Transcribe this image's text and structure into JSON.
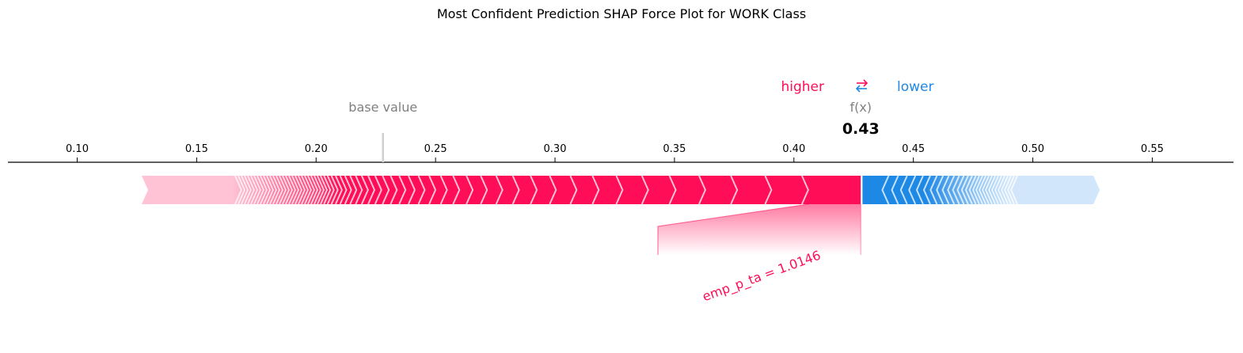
{
  "colors": {
    "positive": "#ff0d57",
    "positive_light": "#ffc3d5",
    "negative": "#1e88e5",
    "negative_light": "#d1e6fa",
    "grey": "#808080"
  },
  "legend": {
    "higher_label": "higher",
    "lower_label": "lower",
    "arrow_icon": "swap-arrows-icon"
  },
  "chart_data": {
    "type": "force",
    "title": "Most Confident Prediction SHAP Force Plot for WORK Class",
    "xlim": [
      0.071,
      0.584
    ],
    "ticks": [
      0.1,
      0.15,
      0.2,
      0.25,
      0.3,
      0.35,
      0.4,
      0.45,
      0.5,
      0.55
    ],
    "tick_labels": [
      "0.10",
      "0.15",
      "0.20",
      "0.25",
      "0.30",
      "0.35",
      "0.40",
      "0.45",
      "0.50",
      "0.55"
    ],
    "base_value": 0.228,
    "base_value_label": "base value",
    "output_value": 0.428,
    "output_label": "f(x)",
    "output_value_text": "0.43",
    "positive_span": [
      0.127,
      0.428
    ],
    "negative_span": [
      0.428,
      0.528
    ],
    "top_feature": {
      "label": "emp_p_ta = 1.0146",
      "start": 0.406,
      "end": 0.428
    }
  }
}
